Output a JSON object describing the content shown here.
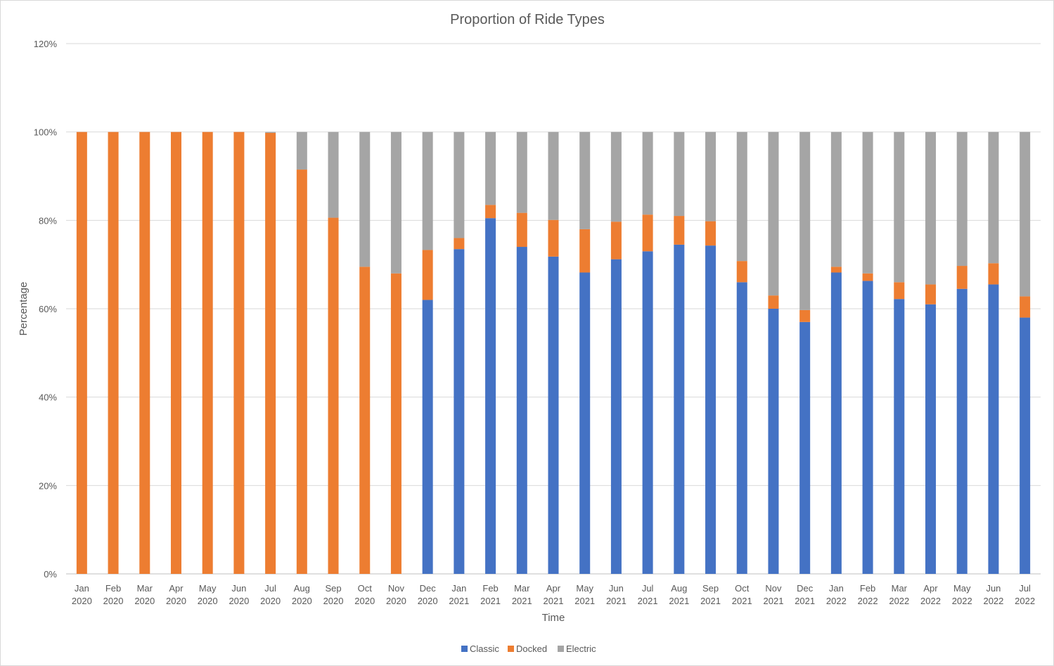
{
  "chart_data": {
    "type": "bar",
    "stacked": true,
    "title": "Proportion of Ride Types",
    "xlabel": "Time",
    "ylabel": "Percentage",
    "ylim": [
      0,
      1.2
    ],
    "yticks": [
      "0%",
      "20%",
      "40%",
      "60%",
      "80%",
      "100%",
      "120%"
    ],
    "grid": true,
    "legend_position": "bottom",
    "categories": [
      [
        "Jan",
        "2020"
      ],
      [
        "Feb",
        "2020"
      ],
      [
        "Mar",
        "2020"
      ],
      [
        "Apr",
        "2020"
      ],
      [
        "May",
        "2020"
      ],
      [
        "Jun",
        "2020"
      ],
      [
        "Jul",
        "2020"
      ],
      [
        "Aug",
        "2020"
      ],
      [
        "Sep",
        "2020"
      ],
      [
        "Oct",
        "2020"
      ],
      [
        "Nov",
        "2020"
      ],
      [
        "Dec",
        "2020"
      ],
      [
        "Jan",
        "2021"
      ],
      [
        "Feb",
        "2021"
      ],
      [
        "Mar",
        "2021"
      ],
      [
        "Apr",
        "2021"
      ],
      [
        "May",
        "2021"
      ],
      [
        "Jun",
        "2021"
      ],
      [
        "Jul",
        "2021"
      ],
      [
        "Aug",
        "2021"
      ],
      [
        "Sep",
        "2021"
      ],
      [
        "Oct",
        "2021"
      ],
      [
        "Nov",
        "2021"
      ],
      [
        "Dec",
        "2021"
      ],
      [
        "Jan",
        "2022"
      ],
      [
        "Feb",
        "2022"
      ],
      [
        "Mar",
        "2022"
      ],
      [
        "Apr",
        "2022"
      ],
      [
        "May",
        "2022"
      ],
      [
        "Jun",
        "2022"
      ],
      [
        "Jul",
        "2022"
      ]
    ],
    "series": [
      {
        "name": "Classic",
        "color": "#4472C4",
        "values": [
          0,
          0,
          0,
          0,
          0,
          0,
          0,
          0,
          0,
          0,
          0,
          0.62,
          0.735,
          0.805,
          0.74,
          0.718,
          0.682,
          0.712,
          0.73,
          0.745,
          0.743,
          0.66,
          0.6,
          0.57,
          0.682,
          0.663,
          0.622,
          0.61,
          0.645,
          0.655,
          0.58
        ]
      },
      {
        "name": "Docked",
        "color": "#ED7D31",
        "values": [
          1.0,
          1.0,
          1.0,
          1.0,
          1.0,
          1.0,
          0.998,
          0.915,
          0.806,
          0.695,
          0.68,
          0.113,
          0.025,
          0.03,
          0.077,
          0.083,
          0.098,
          0.085,
          0.083,
          0.065,
          0.055,
          0.048,
          0.03,
          0.027,
          0.013,
          0.017,
          0.038,
          0.045,
          0.052,
          0.048,
          0.048
        ]
      },
      {
        "name": "Electric",
        "color": "#A5A5A5",
        "values": [
          0,
          0,
          0,
          0,
          0,
          0,
          0.002,
          0.085,
          0.194,
          0.305,
          0.32,
          0.267,
          0.24,
          0.165,
          0.183,
          0.199,
          0.22,
          0.203,
          0.187,
          0.19,
          0.202,
          0.292,
          0.37,
          0.403,
          0.305,
          0.32,
          0.34,
          0.345,
          0.303,
          0.297,
          0.372
        ]
      }
    ]
  }
}
